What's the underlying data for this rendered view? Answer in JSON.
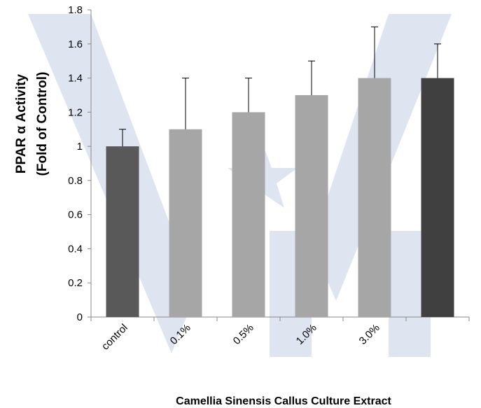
{
  "chart_data": {
    "type": "bar",
    "categories": [
      "control",
      "0.1%",
      "0.5%",
      "1.0%",
      "3.0%",
      ""
    ],
    "values": [
      1.0,
      1.1,
      1.2,
      1.3,
      1.4,
      1.4
    ],
    "error_upper": [
      1.1,
      1.4,
      1.4,
      1.5,
      1.7,
      1.6
    ],
    "bar_colors": [
      "#595959",
      "#a6a6a6",
      "#a6a6a6",
      "#a6a6a6",
      "#a6a6a6",
      "#404040"
    ],
    "ylim": [
      0,
      1.8
    ],
    "yticks": [
      "0",
      "0.2",
      "0.4",
      "0.6",
      "0.8",
      "1",
      "1.2",
      "1.4",
      "1.6",
      "1.8"
    ],
    "ylabel_line1": "PPAR α Activity",
    "ylabel_line2": "(Fold of Control)",
    "xlabel": "Camellia Sinensis Callus Culture Extract",
    "grid": false,
    "watermark_color": "#dfe5f0"
  }
}
